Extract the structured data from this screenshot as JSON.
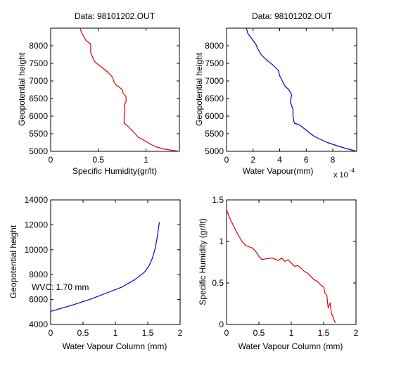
{
  "chart_data": [
    {
      "type": "line",
      "title": "Data: 98101202.OUT",
      "xlabel": "Specific Humidity(gr/lt)",
      "ylabel": "Geopotential height",
      "xlim": [
        0,
        1.35
      ],
      "ylim": [
        5000,
        8500
      ],
      "xticks": [
        0,
        0.5,
        1
      ],
      "yticks": [
        5000,
        5500,
        6000,
        6500,
        7000,
        7500,
        8000
      ],
      "line_color": "#e00000",
      "x": [
        1.35,
        1.2,
        1.1,
        1.05,
        1.0,
        0.92,
        0.85,
        0.8,
        0.77,
        0.77,
        0.78,
        0.77,
        0.79,
        0.79,
        0.76,
        0.75,
        0.73,
        0.68,
        0.66,
        0.65,
        0.6,
        0.53,
        0.46,
        0.42,
        0.42,
        0.37,
        0.34,
        0.32,
        0.31
      ],
      "y": [
        5000,
        5060,
        5130,
        5200,
        5280,
        5400,
        5600,
        5740,
        5800,
        6000,
        6150,
        6300,
        6400,
        6560,
        6650,
        6750,
        6800,
        6900,
        7000,
        7100,
        7250,
        7400,
        7550,
        7800,
        8050,
        8150,
        8300,
        8400,
        8500
      ]
    },
    {
      "type": "line",
      "title": "Data: 98101202.OUT",
      "xlabel": "Water Vapour(mm)",
      "ylabel": "Geopotential height",
      "xlim": [
        0,
        9.8
      ],
      "ylim": [
        5000,
        8500
      ],
      "xticks": [
        0,
        2,
        4,
        6,
        8
      ],
      "yticks": [
        5000,
        5500,
        6000,
        6500,
        7000,
        7500,
        8000
      ],
      "x_exponent_label": "x 10",
      "x_exponent": "-4",
      "line_color": "#0000cc",
      "x": [
        9.8,
        9.0,
        8.3,
        7.6,
        7.0,
        6.5,
        6.0,
        5.5,
        5.1,
        5.0,
        5.0,
        4.8,
        4.9,
        4.7,
        4.4,
        4.2,
        4.0,
        3.9,
        3.5,
        3.0,
        2.6,
        2.3,
        2.2,
        1.9,
        1.6,
        1.5
      ],
      "y": [
        5000,
        5080,
        5160,
        5250,
        5350,
        5450,
        5600,
        5750,
        5800,
        6000,
        6200,
        6400,
        6600,
        6750,
        6850,
        7000,
        7150,
        7300,
        7450,
        7600,
        7750,
        7950,
        8050,
        8200,
        8350,
        8500
      ]
    },
    {
      "type": "line",
      "xlabel": "Water Vapour Column (mm)",
      "ylabel": "Geopotential height",
      "xlim": [
        0,
        2
      ],
      "ylim": [
        4000,
        14000
      ],
      "xticks": [
        0,
        0.5,
        1,
        1.5,
        2
      ],
      "yticks": [
        4000,
        6000,
        8000,
        10000,
        12000,
        14000
      ],
      "annotation": "WVC: 1.70 mm",
      "annotation_color": "#e00000",
      "line_color": "#0000cc",
      "x": [
        0,
        0.3,
        0.6,
        0.9,
        1.1,
        1.3,
        1.45,
        1.52,
        1.57,
        1.61,
        1.64,
        1.66,
        1.67,
        1.68
      ],
      "y": [
        5050,
        5500,
        6000,
        6600,
        7000,
        7600,
        8200,
        8700,
        9300,
        10000,
        10800,
        11500,
        11900,
        12200
      ]
    },
    {
      "type": "line",
      "xlabel": "Water Vapour Column (mm)",
      "ylabel": "Specific Humidity (gr/lt)",
      "xlim": [
        0,
        2
      ],
      "ylim": [
        0,
        1.5
      ],
      "xticks": [
        0,
        0.5,
        1,
        1.5,
        2
      ],
      "yticks": [
        0,
        0.5,
        1,
        1.5
      ],
      "line_color": "#e00000",
      "x": [
        0,
        0.05,
        0.1,
        0.15,
        0.2,
        0.25,
        0.3,
        0.4,
        0.45,
        0.5,
        0.55,
        0.6,
        0.7,
        0.8,
        0.85,
        0.9,
        0.95,
        1.0,
        1.05,
        1.1,
        1.15,
        1.2,
        1.25,
        1.3,
        1.35,
        1.4,
        1.45,
        1.5,
        1.52,
        1.55,
        1.57,
        1.6,
        1.62,
        1.65,
        1.68
      ],
      "y": [
        1.38,
        1.28,
        1.2,
        1.12,
        1.05,
        0.99,
        0.95,
        0.92,
        0.88,
        0.82,
        0.78,
        0.79,
        0.8,
        0.77,
        0.8,
        0.76,
        0.78,
        0.74,
        0.7,
        0.71,
        0.68,
        0.64,
        0.62,
        0.58,
        0.54,
        0.52,
        0.48,
        0.45,
        0.38,
        0.35,
        0.2,
        0.26,
        0.14,
        0.08,
        0.02
      ]
    }
  ]
}
